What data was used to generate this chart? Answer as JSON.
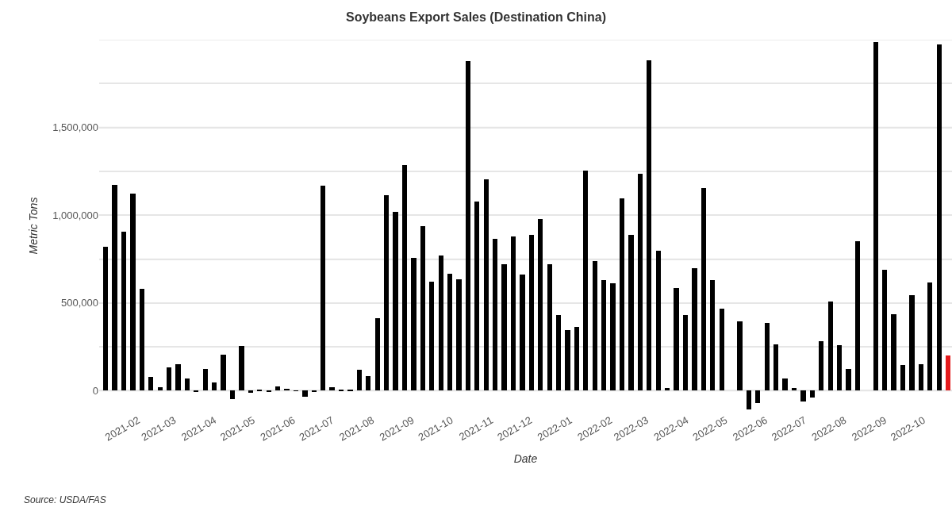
{
  "chart_data": {
    "type": "bar",
    "title": "Soybeans Export Sales (Destination China)",
    "xlabel": "Date",
    "ylabel": "Metric Tons",
    "annotations": [
      "Source: USDA/FAS"
    ],
    "x": [
      "2021-01-07",
      "2021-01-14",
      "2021-01-21",
      "2021-01-28",
      "2021-02-04",
      "2021-02-11",
      "2021-02-18",
      "2021-02-25",
      "2021-03-04",
      "2021-03-11",
      "2021-03-18",
      "2021-03-25",
      "2021-04-01",
      "2021-04-08",
      "2021-04-15",
      "2021-04-22",
      "2021-04-29",
      "2021-05-06",
      "2021-05-13",
      "2021-05-20",
      "2021-05-27",
      "2021-06-03",
      "2021-06-10",
      "2021-06-17",
      "2021-06-24",
      "2021-07-01",
      "2021-07-08",
      "2021-07-15",
      "2021-07-22",
      "2021-07-29",
      "2021-08-05",
      "2021-08-12",
      "2021-08-19",
      "2021-08-26",
      "2021-09-02",
      "2021-09-09",
      "2021-09-16",
      "2021-09-23",
      "2021-09-30",
      "2021-10-07",
      "2021-10-14",
      "2021-10-21",
      "2021-10-28",
      "2021-11-04",
      "2021-11-11",
      "2021-11-18",
      "2021-11-25",
      "2021-12-02",
      "2021-12-09",
      "2021-12-16",
      "2021-12-23",
      "2021-12-30",
      "2022-01-06",
      "2022-01-13",
      "2022-01-20",
      "2022-01-27",
      "2022-02-03",
      "2022-02-10",
      "2022-02-17",
      "2022-02-24",
      "2022-03-03",
      "2022-03-10",
      "2022-03-17",
      "2022-03-24",
      "2022-03-31",
      "2022-04-07",
      "2022-04-14",
      "2022-04-21",
      "2022-04-28",
      "2022-05-05",
      "2022-05-12",
      "2022-05-19",
      "2022-05-26",
      "2022-06-02",
      "2022-06-09",
      "2022-06-16",
      "2022-06-23",
      "2022-06-30",
      "2022-07-07",
      "2022-07-14",
      "2022-07-21",
      "2022-07-28",
      "2022-08-04",
      "2022-08-11",
      "2022-08-18",
      "2022-08-25",
      "2022-09-01",
      "2022-09-08",
      "2022-09-15",
      "2022-09-22",
      "2022-09-29",
      "2022-10-06",
      "2022-10-13",
      "2022-10-20"
    ],
    "values": [
      818000,
      1175000,
      906000,
      1125000,
      582000,
      81000,
      20000,
      134000,
      149000,
      70000,
      -3000,
      122000,
      46000,
      207000,
      -49000,
      255000,
      -10000,
      3000,
      -8000,
      24000,
      12000,
      2000,
      -36000,
      -5000,
      1167000,
      18000,
      4000,
      4000,
      119000,
      85000,
      415000,
      1114000,
      1018000,
      1286000,
      756000,
      939000,
      621000,
      771000,
      667000,
      634000,
      1878000,
      1077000,
      1206000,
      866000,
      722000,
      878000,
      660000,
      886000,
      980000,
      722000,
      431000,
      347000,
      362000,
      1252000,
      738000,
      629000,
      611000,
      1096000,
      886000,
      1237000,
      1883000,
      797000,
      15000,
      585000,
      431000,
      698000,
      1156000,
      631000,
      466000,
      0,
      397000,
      -107000,
      -72000,
      385000,
      264000,
      69000,
      15000,
      -61000,
      -38000,
      283000,
      507000,
      260000,
      122000,
      852000,
      0,
      1985000,
      690000,
      438000,
      145000,
      545000,
      153000,
      615000,
      1974000,
      199000
    ],
    "colors": [
      "#000000",
      "#000000",
      "#000000",
      "#000000",
      "#000000",
      "#000000",
      "#000000",
      "#000000",
      "#000000",
      "#000000",
      "#000000",
      "#000000",
      "#000000",
      "#000000",
      "#000000",
      "#000000",
      "#000000",
      "#000000",
      "#000000",
      "#000000",
      "#000000",
      "#000000",
      "#000000",
      "#000000",
      "#000000",
      "#000000",
      "#000000",
      "#000000",
      "#000000",
      "#000000",
      "#000000",
      "#000000",
      "#000000",
      "#000000",
      "#000000",
      "#000000",
      "#000000",
      "#000000",
      "#000000",
      "#000000",
      "#000000",
      "#000000",
      "#000000",
      "#000000",
      "#000000",
      "#000000",
      "#000000",
      "#000000",
      "#000000",
      "#000000",
      "#000000",
      "#000000",
      "#000000",
      "#000000",
      "#000000",
      "#000000",
      "#000000",
      "#000000",
      "#000000",
      "#000000",
      "#000000",
      "#000000",
      "#000000",
      "#000000",
      "#000000",
      "#000000",
      "#000000",
      "#000000",
      "#000000",
      "#000000",
      "#000000",
      "#000000",
      "#000000",
      "#000000",
      "#000000",
      "#000000",
      "#000000",
      "#000000",
      "#000000",
      "#000000",
      "#000000",
      "#000000",
      "#000000",
      "#000000",
      "#000000",
      "#000000",
      "#000000",
      "#000000",
      "#000000",
      "#000000",
      "#000000",
      "#000000",
      "#000000",
      "#e41a1c"
    ],
    "xlim": [
      "2021-01-02",
      "2022-10-23"
    ],
    "xticks": [
      "2021-02",
      "2021-03",
      "2021-04",
      "2021-05",
      "2021-06",
      "2021-07",
      "2021-08",
      "2021-09",
      "2021-10",
      "2021-11",
      "2021-12",
      "2022-01",
      "2022-02",
      "2022-03",
      "2022-04",
      "2022-05",
      "2022-06",
      "2022-07",
      "2022-08",
      "2022-09",
      "2022-10"
    ],
    "ylim": [
      -120000,
      2000000
    ],
    "yticks": [
      0,
      {
        "value": 250000,
        "label": null
      },
      {
        "value": 500000,
        "label": "500,000"
      },
      {
        "value": 750000,
        "label": null
      },
      {
        "value": 1000000,
        "label": "1,000,000"
      },
      {
        "value": 1250000,
        "label": null
      },
      {
        "value": 1500000,
        "label": "1,500,000"
      },
      {
        "value": 1750000,
        "label": null
      },
      {
        "value": 2000000,
        "label": null
      }
    ],
    "grid": "y"
  }
}
